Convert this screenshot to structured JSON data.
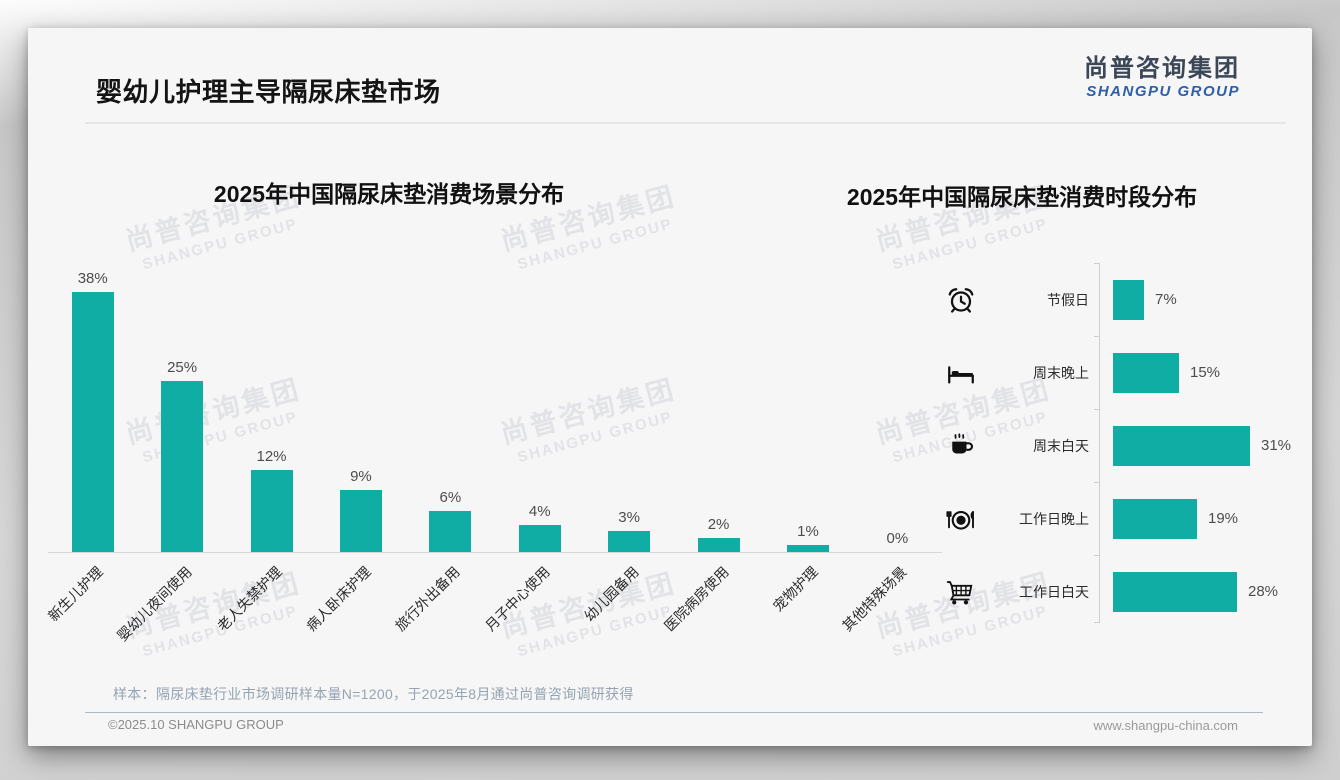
{
  "page": {
    "title": "婴幼儿护理主导隔尿床垫市场",
    "logo": {
      "cn": "尚普咨询集团",
      "en": "SHANGPU GROUP"
    },
    "watermark": {
      "cn": "尚普咨询集团",
      "en": "SHANGPU GROUP"
    },
    "footnote": "样本：隔尿床垫行业市场调研样本量N=1200，于2025年8月通过尚普咨询调研获得",
    "footer": {
      "left": "©2025.10 SHANGPU GROUP",
      "right": "www.shangpu-china.com"
    }
  },
  "colors": {
    "bar_teal": "#0fada4",
    "logo_blue": "#2e5fa8",
    "logo_dark": "#3b4656",
    "footnote_gray_blue": "#96a3b2"
  },
  "chart_data": [
    {
      "type": "bar",
      "orientation": "vertical",
      "title": "2025年中国隔尿床垫消费场景分布",
      "categories": [
        "新生儿护理",
        "婴幼儿夜间使用",
        "老人失禁护理",
        "病人卧床护理",
        "旅行外出备用",
        "月子中心使用",
        "幼儿园备用",
        "医院病房使用",
        "宠物护理",
        "其他特殊场景"
      ],
      "values": [
        38,
        25,
        12,
        9,
        6,
        4,
        3,
        2,
        1,
        0
      ],
      "unit": "%",
      "bar_color": "#0fada4",
      "ylim": [
        0,
        40
      ],
      "grid": false,
      "value_labels": "above bars"
    },
    {
      "type": "bar",
      "orientation": "horizontal",
      "title": "2025年中国隔尿床垫消费时段分布",
      "categories": [
        "节假日",
        "周末晚上",
        "周末白天",
        "工作日晚上",
        "工作日白天"
      ],
      "values": [
        7,
        15,
        31,
        19,
        28
      ],
      "icons": [
        "alarm-clock-icon",
        "bed-icon",
        "coffee-icon",
        "dining-plate-icon",
        "shopping-cart-icon"
      ],
      "unit": "%",
      "bar_color": "#0fada4",
      "xlim": [
        0,
        35
      ],
      "grid": false,
      "value_labels": "right of bars"
    }
  ]
}
